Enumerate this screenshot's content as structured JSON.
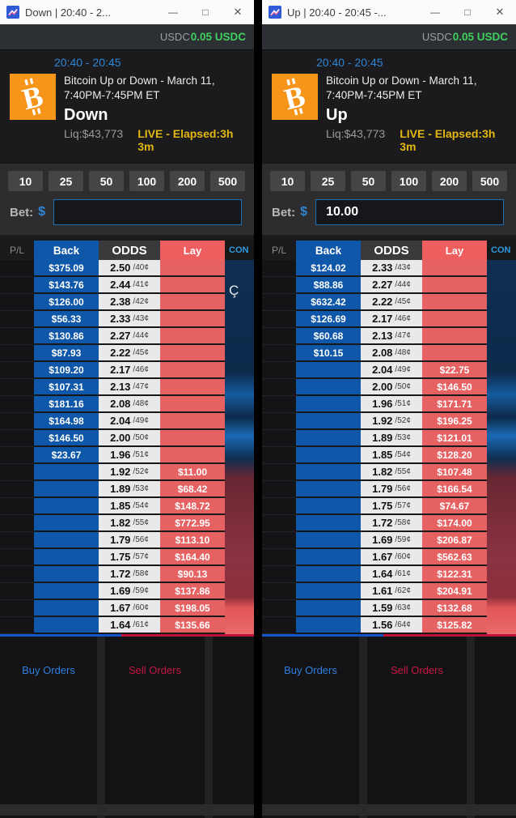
{
  "colors": {
    "back_blue": "#0f57a8",
    "lay_red": "#e66262",
    "odds_bg": "#e9e9e9",
    "accent_blue": "#2e86d6",
    "live_yellow": "#e2b711",
    "balance_green": "#41d05e",
    "buy_label_blue": "#2e7fe0",
    "sell_label_crimson": "#c41744",
    "bitcoin_orange": "#f7941a"
  },
  "windows": [
    {
      "titlebar": {
        "title": "Down | 20:40 - 2...",
        "minimize": "—",
        "maximize": "□",
        "close": "✕"
      },
      "balance": {
        "label": "USDC",
        "amount": "0.05 USDC"
      },
      "market": {
        "time_range": "20:40 - 20:45",
        "title_line1": "Bitcoin Up or Down - March 11,",
        "title_line2": "7:40PM-7:45PM ET",
        "side": "Down",
        "liquidity": "Liq:$43,773",
        "status": "LIVE - Elapsed:3h 3m"
      },
      "stake_buttons": [
        "10",
        "25",
        "50",
        "100",
        "200",
        "500"
      ],
      "bet": {
        "label": "Bet:",
        "currency": "$",
        "value": ""
      },
      "ladder": {
        "headers": {
          "pl": "P/L",
          "back": "Back",
          "odds": "ODDS",
          "lay": "Lay",
          "cutoff": "CON"
        },
        "rows": [
          {
            "back": "$375.09",
            "odds": "2.50",
            "cents": "/40¢",
            "lay": ""
          },
          {
            "back": "$143.76",
            "odds": "2.44",
            "cents": "/41¢",
            "lay": ""
          },
          {
            "back": "$126.00",
            "odds": "2.38",
            "cents": "/42¢",
            "lay": ""
          },
          {
            "back": "$56.33",
            "odds": "2.33",
            "cents": "/43¢",
            "lay": ""
          },
          {
            "back": "$130.86",
            "odds": "2.27",
            "cents": "/44¢",
            "lay": ""
          },
          {
            "back": "$87.93",
            "odds": "2.22",
            "cents": "/45¢",
            "lay": ""
          },
          {
            "back": "$109.20",
            "odds": "2.17",
            "cents": "/46¢",
            "lay": ""
          },
          {
            "back": "$107.31",
            "odds": "2.13",
            "cents": "/47¢",
            "lay": ""
          },
          {
            "back": "$181.16",
            "odds": "2.08",
            "cents": "/48¢",
            "lay": ""
          },
          {
            "back": "$164.98",
            "odds": "2.04",
            "cents": "/49¢",
            "lay": ""
          },
          {
            "back": "$146.50",
            "odds": "2.00",
            "cents": "/50¢",
            "lay": ""
          },
          {
            "back": "$23.67",
            "odds": "1.96",
            "cents": "/51¢",
            "lay": ""
          },
          {
            "back": "",
            "odds": "1.92",
            "cents": "/52¢",
            "lay": "$11.00"
          },
          {
            "back": "",
            "odds": "1.89",
            "cents": "/53¢",
            "lay": "$68.42"
          },
          {
            "back": "",
            "odds": "1.85",
            "cents": "/54¢",
            "lay": "$148.72"
          },
          {
            "back": "",
            "odds": "1.82",
            "cents": "/55¢",
            "lay": "$772.95"
          },
          {
            "back": "",
            "odds": "1.79",
            "cents": "/56¢",
            "lay": "$113.10"
          },
          {
            "back": "",
            "odds": "1.75",
            "cents": "/57¢",
            "lay": "$164.40"
          },
          {
            "back": "",
            "odds": "1.72",
            "cents": "/58¢",
            "lay": "$90.13"
          },
          {
            "back": "",
            "odds": "1.69",
            "cents": "/59¢",
            "lay": "$137.86"
          },
          {
            "back": "",
            "odds": "1.67",
            "cents": "/60¢",
            "lay": "$198.05"
          },
          {
            "back": "",
            "odds": "1.64",
            "cents": "/61¢",
            "lay": "$135.66"
          }
        ]
      },
      "orders": {
        "buy_label": "Buy Orders",
        "sell_label": "Sell Orders"
      },
      "artifact_glyph": "Ç"
    },
    {
      "titlebar": {
        "title": "Up | 20:40 - 20:45 -...",
        "minimize": "—",
        "maximize": "□",
        "close": "✕"
      },
      "balance": {
        "label": "USDC",
        "amount": "0.05 USDC"
      },
      "market": {
        "time_range": "20:40 - 20:45",
        "title_line1": "Bitcoin Up or Down - March 11,",
        "title_line2": "7:40PM-7:45PM ET",
        "side": "Up",
        "liquidity": "Liq:$43,773",
        "status": "LIVE - Elapsed:3h 3m"
      },
      "stake_buttons": [
        "10",
        "25",
        "50",
        "100",
        "200",
        "500"
      ],
      "bet": {
        "label": "Bet:",
        "currency": "$",
        "value": "10.00"
      },
      "ladder": {
        "headers": {
          "pl": "P/L",
          "back": "Back",
          "odds": "ODDS",
          "lay": "Lay",
          "cutoff": "CON"
        },
        "rows": [
          {
            "back": "$124.02",
            "odds": "2.33",
            "cents": "/43¢",
            "lay": ""
          },
          {
            "back": "$88.86",
            "odds": "2.27",
            "cents": "/44¢",
            "lay": ""
          },
          {
            "back": "$632.42",
            "odds": "2.22",
            "cents": "/45¢",
            "lay": ""
          },
          {
            "back": "$126.69",
            "odds": "2.17",
            "cents": "/46¢",
            "lay": ""
          },
          {
            "back": "$60.68",
            "odds": "2.13",
            "cents": "/47¢",
            "lay": ""
          },
          {
            "back": "$10.15",
            "odds": "2.08",
            "cents": "/48¢",
            "lay": ""
          },
          {
            "back": "",
            "odds": "2.04",
            "cents": "/49¢",
            "lay": "$22.75"
          },
          {
            "back": "",
            "odds": "2.00",
            "cents": "/50¢",
            "lay": "$146.50"
          },
          {
            "back": "",
            "odds": "1.96",
            "cents": "/51¢",
            "lay": "$171.71"
          },
          {
            "back": "",
            "odds": "1.92",
            "cents": "/52¢",
            "lay": "$196.25"
          },
          {
            "back": "",
            "odds": "1.89",
            "cents": "/53¢",
            "lay": "$121.01"
          },
          {
            "back": "",
            "odds": "1.85",
            "cents": "/54¢",
            "lay": "$128.20"
          },
          {
            "back": "",
            "odds": "1.82",
            "cents": "/55¢",
            "lay": "$107.48"
          },
          {
            "back": "",
            "odds": "1.79",
            "cents": "/56¢",
            "lay": "$166.54"
          },
          {
            "back": "",
            "odds": "1.75",
            "cents": "/57¢",
            "lay": "$74.67"
          },
          {
            "back": "",
            "odds": "1.72",
            "cents": "/58¢",
            "lay": "$174.00"
          },
          {
            "back": "",
            "odds": "1.69",
            "cents": "/59¢",
            "lay": "$206.87"
          },
          {
            "back": "",
            "odds": "1.67",
            "cents": "/60¢",
            "lay": "$562.63"
          },
          {
            "back": "",
            "odds": "1.64",
            "cents": "/61¢",
            "lay": "$122.31"
          },
          {
            "back": "",
            "odds": "1.61",
            "cents": "/62¢",
            "lay": "$204.91"
          },
          {
            "back": "",
            "odds": "1.59",
            "cents": "/63¢",
            "lay": "$132.68"
          },
          {
            "back": "",
            "odds": "1.56",
            "cents": "/64¢",
            "lay": "$125.82"
          }
        ]
      },
      "orders": {
        "buy_label": "Buy Orders",
        "sell_label": "Sell Orders"
      }
    }
  ]
}
